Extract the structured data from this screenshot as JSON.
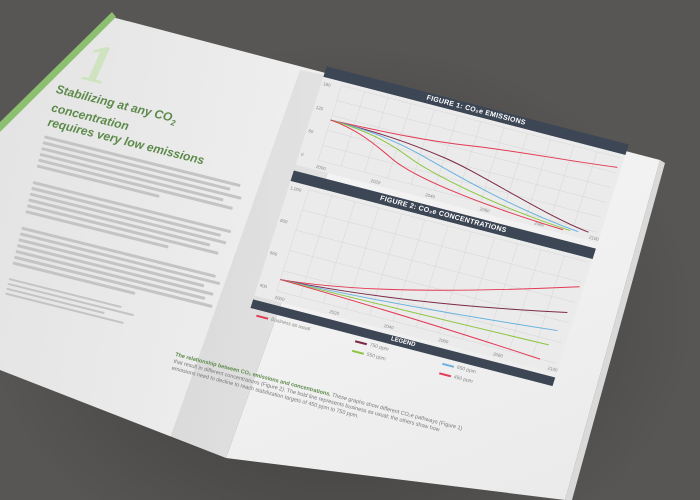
{
  "page": {
    "chapter_number": "1",
    "heading_line1": "Stabilizing at any CO",
    "heading_sub": "2",
    "heading_line2": " concentration",
    "heading_line3": "requires very low emissions"
  },
  "figures": {
    "figure1_title": "FIGURE 1: CO₂e EMISSIONS",
    "figure2_title": "FIGURE 2: CO₂e CONCENTRATIONS",
    "legend_title": "LEGEND",
    "legend_items": [
      "Business as usual",
      "750 ppm",
      "650 ppm",
      "550 ppm",
      "450 ppm"
    ],
    "colors": {
      "bau": "#e23a55",
      "ppm750": "#7b2a4a",
      "ppm650": "#6ab2e0",
      "ppm550": "#8cc63f",
      "ppm450": "#e23a55"
    },
    "x_ticks_fig1": [
      "2000",
      "2020",
      "2040",
      "2060",
      "2080",
      "2100"
    ],
    "y_ticks_fig1": [
      "180",
      "120",
      "60",
      "0"
    ],
    "x_ticks_fig2": [
      "2000",
      "2020",
      "2040",
      "2060",
      "2080",
      "2100"
    ],
    "y_ticks_fig2": [
      "1,000",
      "800",
      "600",
      "400"
    ]
  },
  "caption": {
    "lead": "The relationship between CO₂ emissions and concentrations.",
    "body": "These graphs show different CO₂e pathways (Figure 1) that result in different concentrations (Figure 2). The bold line represents business as usual; the others show how emissions need to decline to reach stabilization targets of 450 ppm to 750 ppm."
  }
}
